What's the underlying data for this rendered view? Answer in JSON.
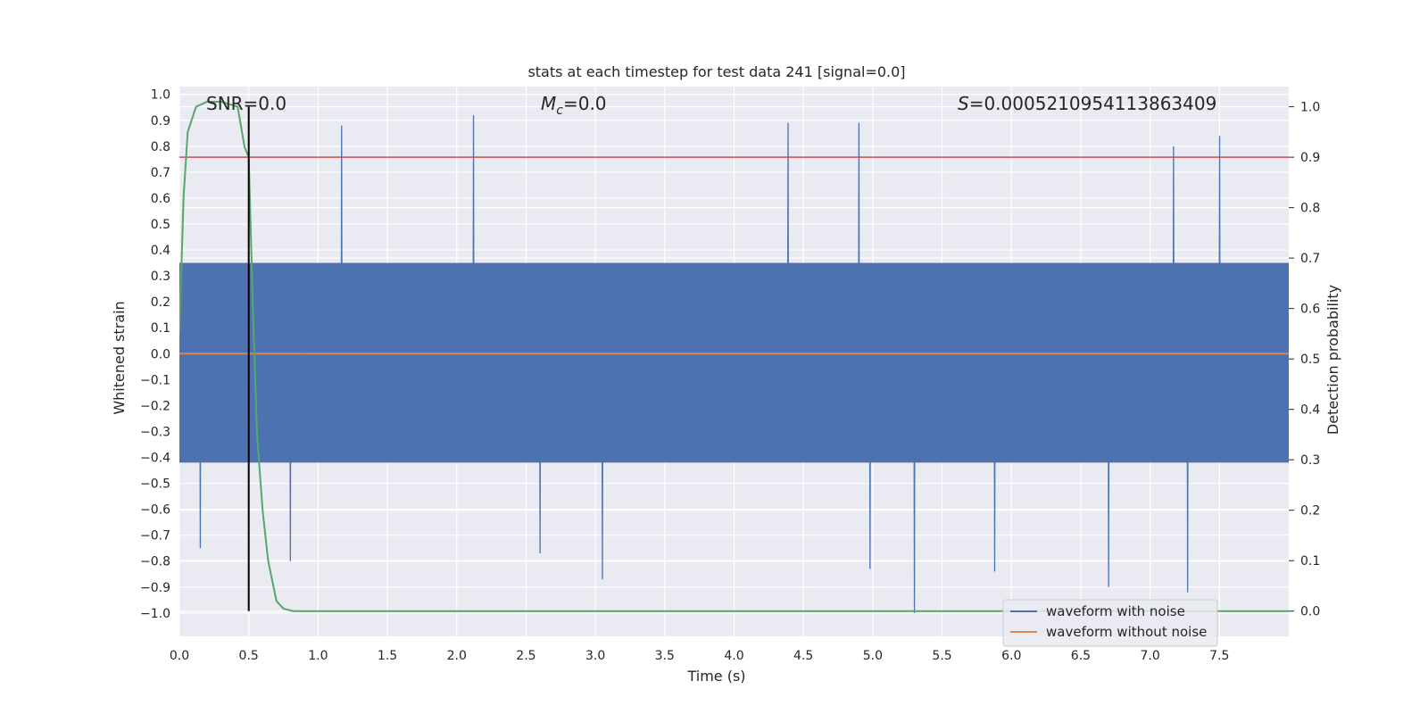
{
  "chart_data": {
    "type": "line",
    "title": "stats at each timestep for test data 241 [signal=0.0]",
    "xlabel": "Time (s)",
    "ylabel_left": "Whitened strain",
    "ylabel_right": "Detection probability",
    "xlim": [
      0.0,
      8.0
    ],
    "ylim_left": [
      -1.09,
      1.03
    ],
    "ylim_right": [
      -0.05,
      1.04
    ],
    "x_ticks": [
      "0.0",
      "0.5",
      "1.0",
      "1.5",
      "2.0",
      "2.5",
      "3.0",
      "3.5",
      "4.0",
      "4.5",
      "5.0",
      "5.5",
      "6.0",
      "6.5",
      "7.0",
      "7.5"
    ],
    "x_tick_values": [
      0.0,
      0.5,
      1.0,
      1.5,
      2.0,
      2.5,
      3.0,
      3.5,
      4.0,
      4.5,
      5.0,
      5.5,
      6.0,
      6.5,
      7.0,
      7.5
    ],
    "y_left_ticks": [
      "1.0",
      "0.9",
      "0.8",
      "0.7",
      "0.6",
      "0.5",
      "0.4",
      "0.3",
      "0.2",
      "0.1",
      "0.0",
      "−0.1",
      "−0.2",
      "−0.3",
      "−0.4",
      "−0.5",
      "−0.6",
      "−0.7",
      "−0.8",
      "−0.9",
      "−1.0"
    ],
    "y_left_tick_values": [
      1.0,
      0.9,
      0.8,
      0.7,
      0.6,
      0.5,
      0.4,
      0.3,
      0.2,
      0.1,
      0.0,
      -0.1,
      -0.2,
      -0.3,
      -0.4,
      -0.5,
      -0.6,
      -0.7,
      -0.8,
      -0.9,
      -1.0
    ],
    "y_right_ticks": [
      "1.0",
      "0.9",
      "0.8",
      "0.7",
      "0.6",
      "0.5",
      "0.4",
      "0.3",
      "0.2",
      "0.1",
      "0.0"
    ],
    "y_right_tick_values": [
      1.0,
      0.9,
      0.8,
      0.7,
      0.6,
      0.5,
      0.4,
      0.3,
      0.2,
      0.1,
      0.0
    ],
    "annotations": {
      "snr": "SNR=0.0",
      "mc_symbol": "M",
      "mc_sub": "c",
      "mc_value": "=0.0",
      "s_symbol": "S",
      "s_value": "=0.0005210954113863409"
    },
    "series": [
      {
        "name": "waveform with noise",
        "color": "#4c72b0",
        "axis": "left",
        "kind": "noise",
        "approx_band": [
          -0.42,
          0.35
        ],
        "peaks": [
          {
            "x": 1.17,
            "y": 0.88
          },
          {
            "x": 2.12,
            "y": 0.92
          },
          {
            "x": 4.39,
            "y": 0.89
          },
          {
            "x": 4.9,
            "y": 0.89
          },
          {
            "x": 7.5,
            "y": 0.84
          },
          {
            "x": 7.17,
            "y": 0.8
          },
          {
            "x": 5.3,
            "y": -1.0
          },
          {
            "x": 6.7,
            "y": -0.9
          },
          {
            "x": 7.27,
            "y": -0.92
          },
          {
            "x": 3.05,
            "y": -0.87
          },
          {
            "x": 0.8,
            "y": -0.8
          },
          {
            "x": 2.6,
            "y": -0.77
          },
          {
            "x": 0.15,
            "y": -0.75
          },
          {
            "x": 4.98,
            "y": -0.83
          },
          {
            "x": 5.88,
            "y": -0.84
          }
        ]
      },
      {
        "name": "waveform without noise",
        "color": "#dd8452",
        "axis": "left",
        "x": [
          0.0,
          8.0
        ],
        "y": [
          0.0,
          0.0
        ]
      },
      {
        "name": "detection probability",
        "color": "#55a868",
        "axis": "right",
        "x": [
          0.0,
          0.03,
          0.06,
          0.12,
          0.2,
          0.3,
          0.42,
          0.47,
          0.5,
          0.53,
          0.56,
          0.6,
          0.64,
          0.7,
          0.75,
          0.82,
          1.0,
          8.0
        ],
        "y": [
          0.55,
          0.82,
          0.95,
          1.0,
          1.01,
          1.01,
          1.0,
          0.92,
          0.9,
          0.6,
          0.35,
          0.2,
          0.1,
          0.02,
          0.005,
          0.0,
          0.0,
          0.0
        ]
      }
    ],
    "hlines": [
      {
        "name": "threshold",
        "color": "#c44e52",
        "axis": "right",
        "y": 0.9
      }
    ],
    "vlines": [
      {
        "name": "marker",
        "color": "#000000",
        "x": 0.5,
        "y_range_right": [
          0.0,
          1.0
        ]
      }
    ],
    "legend": {
      "position": "bottom-right",
      "entries": [
        "waveform with noise",
        "waveform without noise"
      ]
    }
  }
}
